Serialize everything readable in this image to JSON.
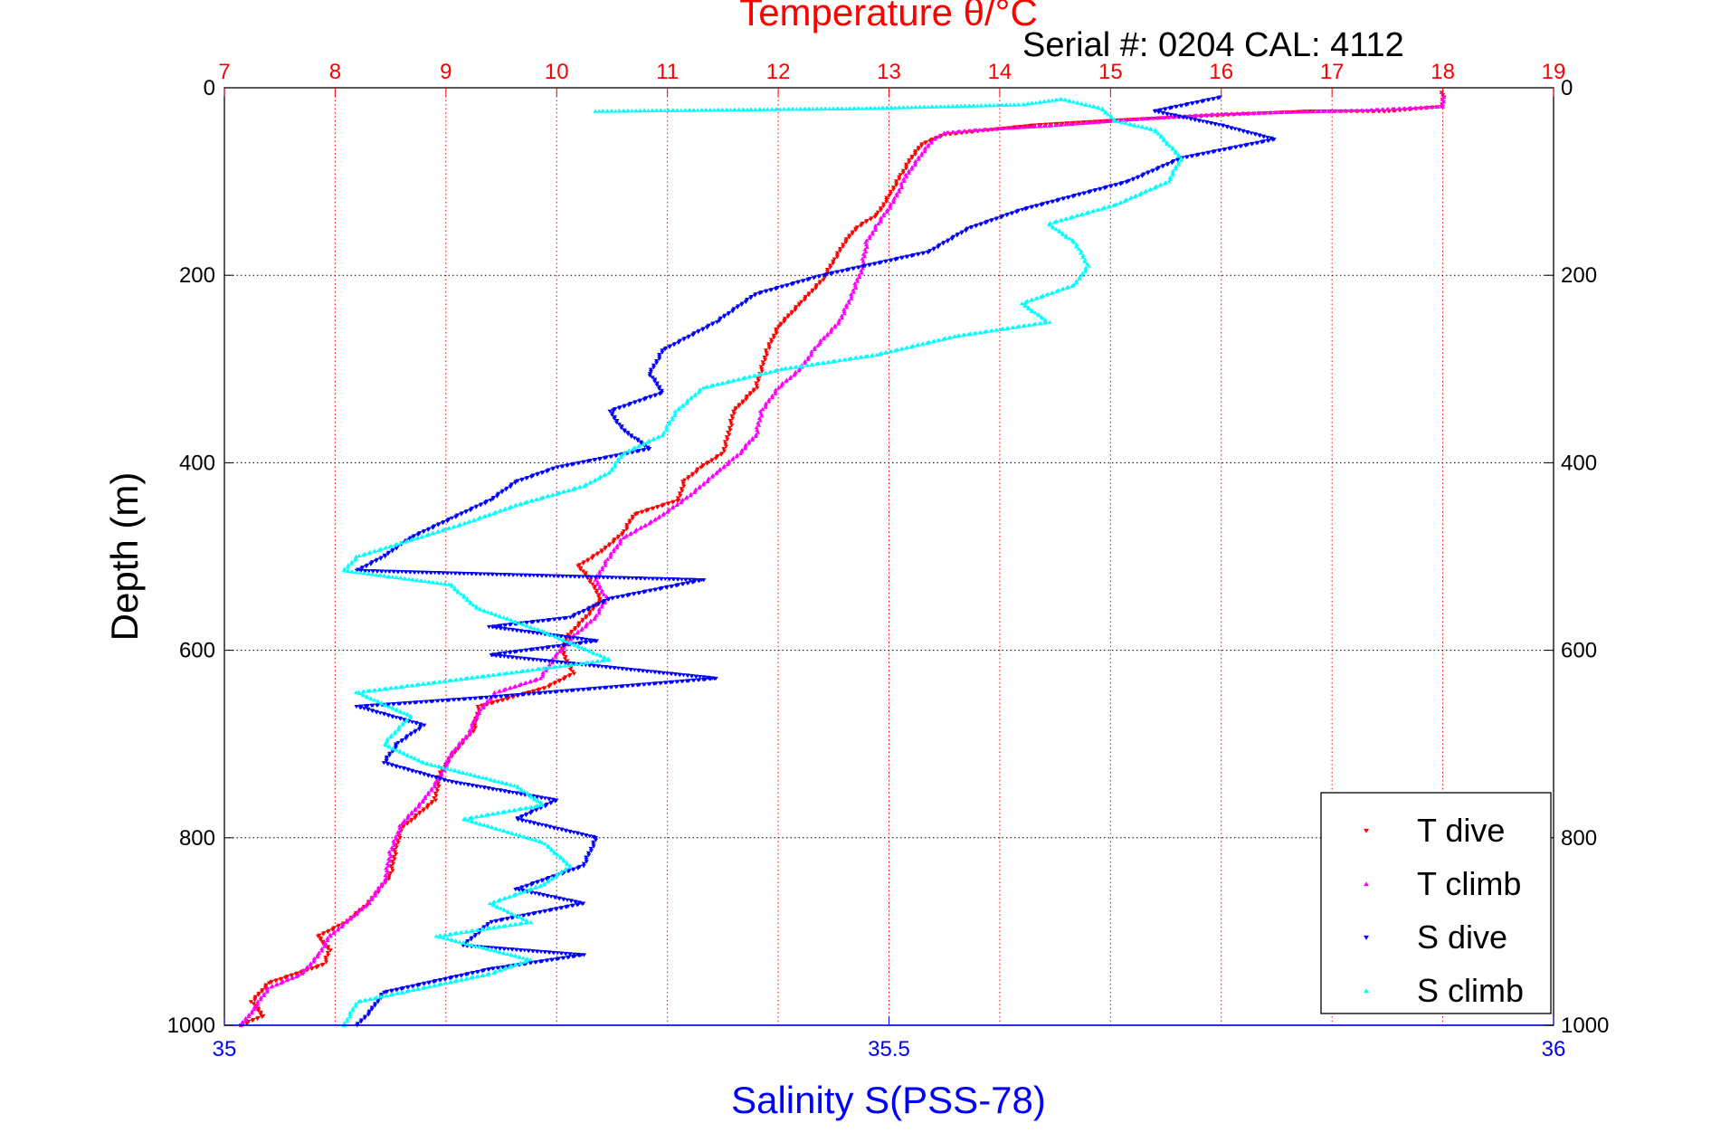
{
  "chart_data": {
    "type": "scatter",
    "title": "Temperature θ/°C",
    "subtitle": "Serial #: 0204  CAL: 4112",
    "x_top": {
      "label": "Temperature θ/°C",
      "range": [
        7,
        19
      ],
      "ticks": [
        "7",
        "8",
        "9",
        "10",
        "11",
        "12",
        "13",
        "14",
        "15",
        "16",
        "17",
        "18",
        "19"
      ],
      "color": "#ff0000"
    },
    "x_bottom": {
      "label": "Salinity S(PSS-78)",
      "range": [
        35,
        36
      ],
      "ticks": [
        "35",
        "35.5",
        "36"
      ],
      "color": "#0000ff"
    },
    "y": {
      "label": "Depth (m)",
      "range": [
        0,
        1000
      ],
      "reversed": true,
      "ticks": [
        "0",
        "200",
        "400",
        "600",
        "800",
        "1000"
      ]
    },
    "grid": true,
    "legend_position": "bottom-right",
    "series": [
      {
        "name": "T dive",
        "axis": "top",
        "color": "#ff0000",
        "marker": "triangle-down",
        "points": [
          [
            18,
            5
          ],
          [
            18,
            20
          ],
          [
            17.5,
            25
          ],
          [
            16.8,
            25
          ],
          [
            16.2,
            28
          ],
          [
            15.5,
            32
          ],
          [
            15,
            35
          ],
          [
            14.3,
            40
          ],
          [
            13.9,
            45
          ],
          [
            13.5,
            50
          ],
          [
            13.3,
            60
          ],
          [
            13.2,
            75
          ],
          [
            13.1,
            95
          ],
          [
            13.0,
            115
          ],
          [
            12.9,
            135
          ],
          [
            12.7,
            150
          ],
          [
            12.6,
            165
          ],
          [
            12.5,
            185
          ],
          [
            12.4,
            205
          ],
          [
            12.2,
            230
          ],
          [
            12.0,
            255
          ],
          [
            11.9,
            280
          ],
          [
            11.85,
            300
          ],
          [
            11.8,
            320
          ],
          [
            11.6,
            345
          ],
          [
            11.55,
            370
          ],
          [
            11.5,
            390
          ],
          [
            11.3,
            405
          ],
          [
            11.15,
            420
          ],
          [
            11.1,
            440
          ],
          [
            10.7,
            455
          ],
          [
            10.6,
            475
          ],
          [
            10.4,
            495
          ],
          [
            10.2,
            510
          ],
          [
            10.3,
            525
          ],
          [
            10.4,
            545
          ],
          [
            10.3,
            560
          ],
          [
            10.1,
            585
          ],
          [
            10.05,
            600
          ],
          [
            10.15,
            625
          ],
          [
            9.9,
            640
          ],
          [
            9.6,
            650
          ],
          [
            9.3,
            660
          ],
          [
            9.25,
            685
          ],
          [
            9.1,
            705
          ],
          [
            8.95,
            730
          ],
          [
            8.9,
            760
          ],
          [
            8.6,
            790
          ],
          [
            8.55,
            810
          ],
          [
            8.5,
            840
          ],
          [
            8.3,
            870
          ],
          [
            8.1,
            890
          ],
          [
            7.85,
            905
          ],
          [
            7.95,
            920
          ],
          [
            7.9,
            935
          ],
          [
            7.4,
            955
          ],
          [
            7.25,
            975
          ],
          [
            7.35,
            990
          ],
          [
            7.15,
            1000
          ]
        ]
      },
      {
        "name": "T climb",
        "axis": "top",
        "color": "#ff00ff",
        "marker": "triangle-up",
        "points": [
          [
            18,
            5
          ],
          [
            18,
            20
          ],
          [
            17.3,
            24
          ],
          [
            16.6,
            26
          ],
          [
            16,
            28
          ],
          [
            15.3,
            33
          ],
          [
            14.5,
            40
          ],
          [
            13.8,
            45
          ],
          [
            13.5,
            48
          ],
          [
            13.4,
            55
          ],
          [
            13.3,
            70
          ],
          [
            13.15,
            95
          ],
          [
            13.05,
            120
          ],
          [
            12.9,
            145
          ],
          [
            12.8,
            165
          ],
          [
            12.75,
            195
          ],
          [
            12.65,
            225
          ],
          [
            12.55,
            250
          ],
          [
            12.35,
            275
          ],
          [
            12.2,
            300
          ],
          [
            12.0,
            320
          ],
          [
            11.85,
            345
          ],
          [
            11.8,
            370
          ],
          [
            11.65,
            390
          ],
          [
            11.45,
            410
          ],
          [
            11.2,
            435
          ],
          [
            10.9,
            460
          ],
          [
            10.6,
            480
          ],
          [
            10.45,
            505
          ],
          [
            10.35,
            525
          ],
          [
            10.45,
            545
          ],
          [
            10.35,
            565
          ],
          [
            10.15,
            585
          ],
          [
            10.0,
            605
          ],
          [
            9.85,
            630
          ],
          [
            9.45,
            645
          ],
          [
            9.3,
            665
          ],
          [
            9.2,
            690
          ],
          [
            9.05,
            710
          ],
          [
            8.95,
            735
          ],
          [
            8.8,
            760
          ],
          [
            8.6,
            785
          ],
          [
            8.5,
            815
          ],
          [
            8.45,
            845
          ],
          [
            8.3,
            870
          ],
          [
            8.15,
            885
          ],
          [
            7.95,
            905
          ],
          [
            7.85,
            925
          ],
          [
            7.7,
            945
          ],
          [
            7.4,
            960
          ],
          [
            7.25,
            985
          ],
          [
            7.15,
            1000
          ]
        ]
      },
      {
        "name": "S dive",
        "axis": "bottom",
        "color": "#0000ff",
        "marker": "triangle-down",
        "points": [
          [
            35.75,
            10
          ],
          [
            35.7,
            25
          ],
          [
            35.75,
            40
          ],
          [
            35.79,
            55
          ],
          [
            35.72,
            75
          ],
          [
            35.68,
            100
          ],
          [
            35.6,
            130
          ],
          [
            35.56,
            150
          ],
          [
            35.53,
            175
          ],
          [
            35.45,
            200
          ],
          [
            35.4,
            220
          ],
          [
            35.37,
            250
          ],
          [
            35.33,
            280
          ],
          [
            35.32,
            305
          ],
          [
            35.33,
            325
          ],
          [
            35.29,
            345
          ],
          [
            35.3,
            365
          ],
          [
            35.32,
            385
          ],
          [
            35.25,
            405
          ],
          [
            35.22,
            420
          ],
          [
            35.2,
            440
          ],
          [
            35.17,
            460
          ],
          [
            35.14,
            480
          ],
          [
            35.12,
            500
          ],
          [
            35.1,
            515
          ],
          [
            35.36,
            525
          ],
          [
            35.29,
            545
          ],
          [
            35.26,
            565
          ],
          [
            35.2,
            575
          ],
          [
            35.28,
            590
          ],
          [
            35.2,
            605
          ],
          [
            35.37,
            630
          ],
          [
            35.2,
            650
          ],
          [
            35.1,
            660
          ],
          [
            35.15,
            680
          ],
          [
            35.13,
            700
          ],
          [
            35.12,
            720
          ],
          [
            35.17,
            740
          ],
          [
            35.25,
            760
          ],
          [
            35.22,
            780
          ],
          [
            35.28,
            800
          ],
          [
            35.27,
            830
          ],
          [
            35.22,
            855
          ],
          [
            35.27,
            870
          ],
          [
            35.2,
            890
          ],
          [
            35.18,
            915
          ],
          [
            35.27,
            925
          ],
          [
            35.2,
            940
          ],
          [
            35.12,
            965
          ],
          [
            35.11,
            985
          ],
          [
            35.1,
            1000
          ]
        ]
      },
      {
        "name": "S climb",
        "axis": "bottom",
        "color": "#00ffff",
        "marker": "triangle-up",
        "points": [
          [
            35.28,
            25
          ],
          [
            35.48,
            22
          ],
          [
            35.6,
            18
          ],
          [
            35.63,
            12
          ],
          [
            35.66,
            22
          ],
          [
            35.67,
            35
          ],
          [
            35.7,
            45
          ],
          [
            35.71,
            60
          ],
          [
            35.72,
            75
          ],
          [
            35.71,
            100
          ],
          [
            35.67,
            125
          ],
          [
            35.62,
            145
          ],
          [
            35.64,
            165
          ],
          [
            35.65,
            190
          ],
          [
            35.64,
            210
          ],
          [
            35.6,
            230
          ],
          [
            35.62,
            250
          ],
          [
            35.55,
            265
          ],
          [
            35.49,
            285
          ],
          [
            35.42,
            300
          ],
          [
            35.36,
            320
          ],
          [
            35.34,
            345
          ],
          [
            35.33,
            370
          ],
          [
            35.3,
            390
          ],
          [
            35.29,
            410
          ],
          [
            35.27,
            425
          ],
          [
            35.22,
            445
          ],
          [
            35.18,
            465
          ],
          [
            35.1,
            500
          ],
          [
            35.09,
            515
          ],
          [
            35.17,
            530
          ],
          [
            35.19,
            555
          ],
          [
            35.24,
            580
          ],
          [
            35.29,
            610
          ],
          [
            35.21,
            625
          ],
          [
            35.1,
            645
          ],
          [
            35.14,
            670
          ],
          [
            35.12,
            700
          ],
          [
            35.15,
            720
          ],
          [
            35.22,
            745
          ],
          [
            35.24,
            765
          ],
          [
            35.18,
            780
          ],
          [
            35.24,
            805
          ],
          [
            35.26,
            830
          ],
          [
            35.24,
            850
          ],
          [
            35.2,
            870
          ],
          [
            35.23,
            890
          ],
          [
            35.16,
            905
          ],
          [
            35.23,
            930
          ],
          [
            35.2,
            945
          ],
          [
            35.15,
            960
          ],
          [
            35.1,
            975
          ],
          [
            35.09,
            1000
          ]
        ]
      }
    ]
  },
  "colors": {
    "temperature_axis": "#ff0000",
    "salinity_axis": "#0000ff",
    "grid": "#000000"
  }
}
